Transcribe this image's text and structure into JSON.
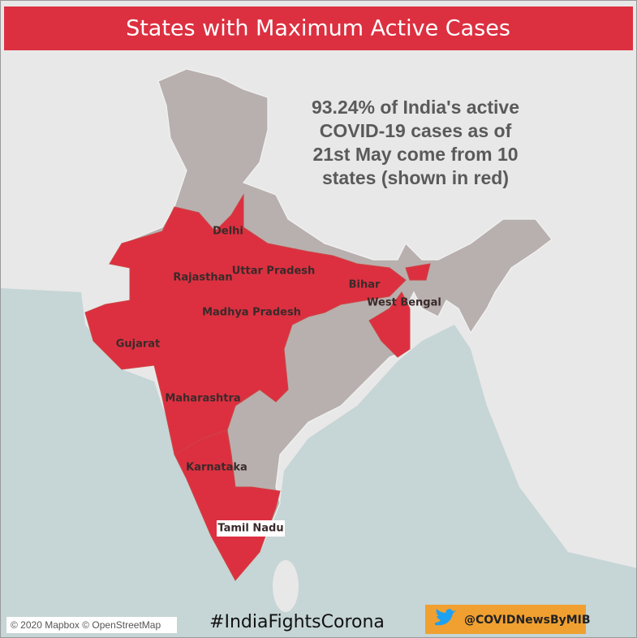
{
  "header": {
    "title": "States with Maximum Active Cases"
  },
  "annotation": [
    "93.24% of India's active",
    "COVID-19 cases as of",
    "21st May come from 10",
    "states (shown in red)"
  ],
  "states": [
    {
      "label": "Delhi"
    },
    {
      "label": "Rajasthan"
    },
    {
      "label": "Uttar Pradesh"
    },
    {
      "label": "Bihar"
    },
    {
      "label": "West Bengal"
    },
    {
      "label": "Madhya Pradesh"
    },
    {
      "label": "Gujarat"
    },
    {
      "label": "Maharashtra"
    },
    {
      "label": "Karnataka"
    },
    {
      "label": "Tamil Nadu"
    }
  ],
  "footer": {
    "attribution": "© 2020 Mapbox © OpenStreetMap",
    "hashtag": "#IndiaFightsCorona",
    "handle": "@COVIDNewsByMIB"
  }
}
